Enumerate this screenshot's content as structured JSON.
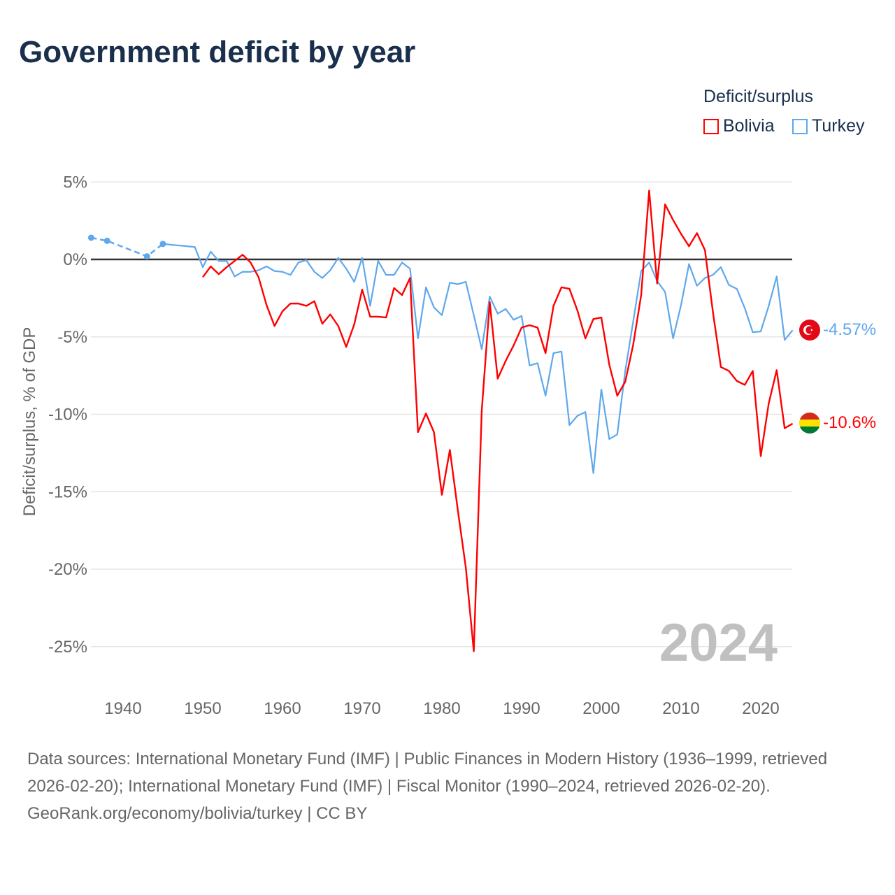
{
  "title": "Government deficit by year",
  "legend": {
    "title": "Deficit/surplus",
    "items": [
      "Bolivia",
      "Turkey"
    ]
  },
  "year_label": "2024",
  "end_labels": {
    "turkey": "-4.57%",
    "bolivia": "-10.6%"
  },
  "source": {
    "line1": "Data sources: International Monetary Fund (IMF) | Public Finances in Modern History (1936–1999, retrieved 2026-02-20); International Monetary Fund (IMF) | Fiscal Monitor (1990–2024, retrieved 2026-02-20).",
    "line2": "GeoRank.org/economy/bolivia/turkey | CC BY"
  },
  "colors": {
    "bolivia": "#ff0000",
    "turkey": "#5ea8ec"
  },
  "chart_data": {
    "type": "line",
    "title": "Government deficit by year",
    "xlabel": "",
    "ylabel": "Deficit/surplus, % of GDP",
    "xlim": [
      1936,
      2024
    ],
    "ylim": [
      -27,
      5
    ],
    "x_ticks": [
      1940,
      1950,
      1960,
      1970,
      1980,
      1990,
      2000,
      2010,
      2020
    ],
    "y_ticks": [
      5,
      0,
      -5,
      -10,
      -15,
      -20,
      -25
    ],
    "y_tick_labels": [
      "5%",
      "0%",
      "-5%",
      "-10%",
      "-15%",
      "-20%",
      "-25%"
    ],
    "grid": true,
    "legend_position": "top-right",
    "series": [
      {
        "name": "Turkey",
        "dashed_points": [
          [
            1936,
            1.4
          ],
          [
            1938,
            1.2
          ],
          [
            1943,
            0.2
          ],
          [
            1945,
            1.0
          ]
        ],
        "x": [
          1945,
          1949,
          1950,
          1951,
          1952,
          1953,
          1954,
          1955,
          1956,
          1957,
          1958,
          1959,
          1960,
          1961,
          1962,
          1963,
          1964,
          1965,
          1966,
          1967,
          1968,
          1969,
          1970,
          1971,
          1972,
          1973,
          1974,
          1975,
          1976,
          1977,
          1978,
          1979,
          1980,
          1981,
          1982,
          1983,
          1984,
          1985,
          1986,
          1987,
          1988,
          1989,
          1990,
          1991,
          1992,
          1993,
          1994,
          1995,
          1996,
          1997,
          1998,
          1999,
          2000,
          2001,
          2002,
          2003,
          2004,
          2005,
          2006,
          2007,
          2008,
          2009,
          2010,
          2011,
          2012,
          2013,
          2014,
          2015,
          2016,
          2017,
          2018,
          2019,
          2020,
          2021,
          2022,
          2023,
          2024
        ],
        "values": [
          1.0,
          0.8,
          -0.5,
          0.5,
          -0.1,
          -0.1,
          -1.1,
          -0.8,
          -0.8,
          -0.7,
          -0.45,
          -0.75,
          -0.8,
          -1.0,
          -0.2,
          -0.05,
          -0.8,
          -1.2,
          -0.7,
          0.1,
          -0.6,
          -1.45,
          0.1,
          -3.0,
          -0.1,
          -1.0,
          -1.0,
          -0.2,
          -0.6,
          -5.1,
          -1.8,
          -3.1,
          -3.6,
          -1.5,
          -1.6,
          -1.45,
          -3.6,
          -5.8,
          -2.4,
          -3.5,
          -3.2,
          -3.9,
          -3.65,
          -6.85,
          -6.7,
          -8.8,
          -6.05,
          -5.95,
          -10.7,
          -10.1,
          -9.85,
          -13.8,
          -8.4,
          -11.6,
          -11.3,
          -7.2,
          -4.0,
          -0.75,
          -0.2,
          -1.4,
          -2.1,
          -5.1,
          -2.95,
          -0.3,
          -1.7,
          -1.2,
          -1.0,
          -0.5,
          -1.65,
          -1.9,
          -3.15,
          -4.7,
          -4.65,
          -3.0,
          -1.1,
          -5.2,
          -4.57
        ]
      },
      {
        "name": "Bolivia",
        "x": [
          1950,
          1951,
          1952,
          1953,
          1954,
          1955,
          1956,
          1957,
          1958,
          1959,
          1960,
          1961,
          1962,
          1963,
          1964,
          1965,
          1966,
          1967,
          1968,
          1969,
          1970,
          1971,
          1972,
          1973,
          1974,
          1975,
          1976,
          1977,
          1978,
          1979,
          1980,
          1981,
          1982,
          1983,
          1984,
          1985,
          1986,
          1987,
          1988,
          1989,
          1990,
          1991,
          1992,
          1993,
          1994,
          1995,
          1996,
          1997,
          1998,
          1999,
          2000,
          2001,
          2002,
          2003,
          2004,
          2005,
          2006,
          2007,
          2008,
          2009,
          2010,
          2011,
          2012,
          2013,
          2014,
          2015,
          2016,
          2017,
          2018,
          2019,
          2020,
          2021,
          2022,
          2023,
          2024
        ],
        "values": [
          -1.15,
          -0.45,
          -0.95,
          -0.5,
          -0.1,
          0.3,
          -0.2,
          -1.15,
          -2.95,
          -4.3,
          -3.35,
          -2.85,
          -2.85,
          -3.0,
          -2.7,
          -4.15,
          -3.55,
          -4.3,
          -5.65,
          -4.2,
          -1.95,
          -3.7,
          -3.7,
          -3.75,
          -1.85,
          -2.3,
          -1.2,
          -11.15,
          -9.95,
          -11.15,
          -15.2,
          -12.3,
          -16.2,
          -19.9,
          -25.3,
          -9.75,
          -2.75,
          -7.7,
          -6.55,
          -5.55,
          -4.4,
          -4.25,
          -4.4,
          -6.05,
          -3.0,
          -1.8,
          -1.9,
          -3.3,
          -5.1,
          -3.85,
          -3.75,
          -6.8,
          -8.8,
          -7.9,
          -5.5,
          -2.3,
          4.45,
          -1.55,
          3.55,
          2.55,
          1.65,
          0.85,
          1.7,
          0.6,
          -3.4,
          -6.95,
          -7.2,
          -7.85,
          -8.1,
          -7.2,
          -12.7,
          -9.3,
          -7.15,
          -10.9,
          -10.6
        ]
      }
    ]
  }
}
